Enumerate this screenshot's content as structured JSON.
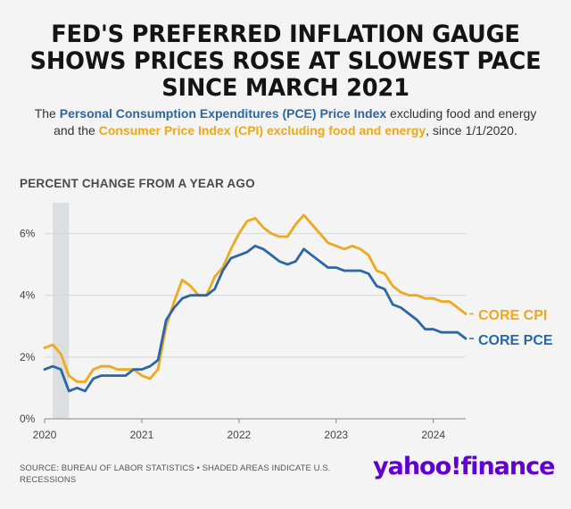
{
  "header": {
    "title_lines": [
      "FED'S PREFERRED INFLATION GAUGE",
      "SHOWS PRICES ROSE AT SLOWEST PACE",
      "SINCE MARCH 2021"
    ],
    "subtitle": {
      "part1": "The ",
      "pce_name": "Personal Consumption Expenditures (PCE) Price Index",
      "part2": " excluding food and energy and the ",
      "cpi_name": "Consumer Price Index (CPI) excluding food and energy",
      "part3": ", since 1/1/2020."
    }
  },
  "chart_data": {
    "type": "line",
    "y_axis_title": "PERCENT CHANGE FROM A YEAR AGO",
    "ylim": [
      0,
      7
    ],
    "yticks": [
      0,
      2,
      4,
      6
    ],
    "ytick_labels": [
      "0%",
      "2%",
      "4%",
      "6%"
    ],
    "xlim": [
      "2020-01",
      "2024-05"
    ],
    "xticks": [
      "2020-01",
      "2021-01",
      "2022-01",
      "2023-01",
      "2024-01"
    ],
    "xtick_labels": [
      "2020",
      "2021",
      "2022",
      "2023",
      "2024"
    ],
    "grid": true,
    "recession_shading": [
      "2020-02",
      "2020-04"
    ],
    "series": [
      {
        "name": "CORE CPI",
        "color": "#f0a81c",
        "x": [
          "2020-01",
          "2020-02",
          "2020-03",
          "2020-04",
          "2020-05",
          "2020-06",
          "2020-07",
          "2020-08",
          "2020-09",
          "2020-10",
          "2020-11",
          "2020-12",
          "2021-01",
          "2021-02",
          "2021-03",
          "2021-04",
          "2021-05",
          "2021-06",
          "2021-07",
          "2021-08",
          "2021-09",
          "2021-10",
          "2021-11",
          "2021-12",
          "2022-01",
          "2022-02",
          "2022-03",
          "2022-04",
          "2022-05",
          "2022-06",
          "2022-07",
          "2022-08",
          "2022-09",
          "2022-10",
          "2022-11",
          "2022-12",
          "2023-01",
          "2023-02",
          "2023-03",
          "2023-04",
          "2023-05",
          "2023-06",
          "2023-07",
          "2023-08",
          "2023-09",
          "2023-10",
          "2023-11",
          "2023-12",
          "2024-01",
          "2024-02",
          "2024-03",
          "2024-04",
          "2024-05"
        ],
        "values": [
          2.3,
          2.4,
          2.1,
          1.4,
          1.2,
          1.2,
          1.6,
          1.7,
          1.7,
          1.6,
          1.6,
          1.6,
          1.4,
          1.3,
          1.6,
          3.0,
          3.8,
          4.5,
          4.3,
          4.0,
          4.0,
          4.6,
          4.9,
          5.5,
          6.0,
          6.4,
          6.5,
          6.2,
          6.0,
          5.9,
          5.9,
          6.3,
          6.6,
          6.3,
          6.0,
          5.7,
          5.6,
          5.5,
          5.6,
          5.5,
          5.3,
          4.8,
          4.7,
          4.3,
          4.1,
          4.0,
          4.0,
          3.9,
          3.9,
          3.8,
          3.8,
          3.6,
          3.4
        ]
      },
      {
        "name": "CORE PCE",
        "color": "#2a66a8",
        "x": [
          "2020-01",
          "2020-02",
          "2020-03",
          "2020-04",
          "2020-05",
          "2020-06",
          "2020-07",
          "2020-08",
          "2020-09",
          "2020-10",
          "2020-11",
          "2020-12",
          "2021-01",
          "2021-02",
          "2021-03",
          "2021-04",
          "2021-05",
          "2021-06",
          "2021-07",
          "2021-08",
          "2021-09",
          "2021-10",
          "2021-11",
          "2021-12",
          "2022-01",
          "2022-02",
          "2022-03",
          "2022-04",
          "2022-05",
          "2022-06",
          "2022-07",
          "2022-08",
          "2022-09",
          "2022-10",
          "2022-11",
          "2022-12",
          "2023-01",
          "2023-02",
          "2023-03",
          "2023-04",
          "2023-05",
          "2023-06",
          "2023-07",
          "2023-08",
          "2023-09",
          "2023-10",
          "2023-11",
          "2023-12",
          "2024-01",
          "2024-02",
          "2024-03",
          "2024-04",
          "2024-05"
        ],
        "values": [
          1.6,
          1.7,
          1.6,
          0.9,
          1.0,
          0.9,
          1.3,
          1.4,
          1.4,
          1.4,
          1.4,
          1.6,
          1.6,
          1.7,
          1.9,
          3.2,
          3.6,
          3.9,
          4.0,
          4.0,
          4.0,
          4.2,
          4.8,
          5.2,
          5.3,
          5.4,
          5.6,
          5.5,
          5.3,
          5.1,
          5.0,
          5.1,
          5.5,
          5.3,
          5.1,
          4.9,
          4.9,
          4.8,
          4.8,
          4.8,
          4.7,
          4.3,
          4.2,
          3.7,
          3.6,
          3.4,
          3.2,
          2.9,
          2.9,
          2.8,
          2.8,
          2.8,
          2.6
        ]
      }
    ]
  },
  "footer": {
    "source": "SOURCE: BUREAU OF LABOR STATISTICS • SHADED AREAS INDICATE U.S. RECESSIONS",
    "logo": "yahoo!finance"
  }
}
